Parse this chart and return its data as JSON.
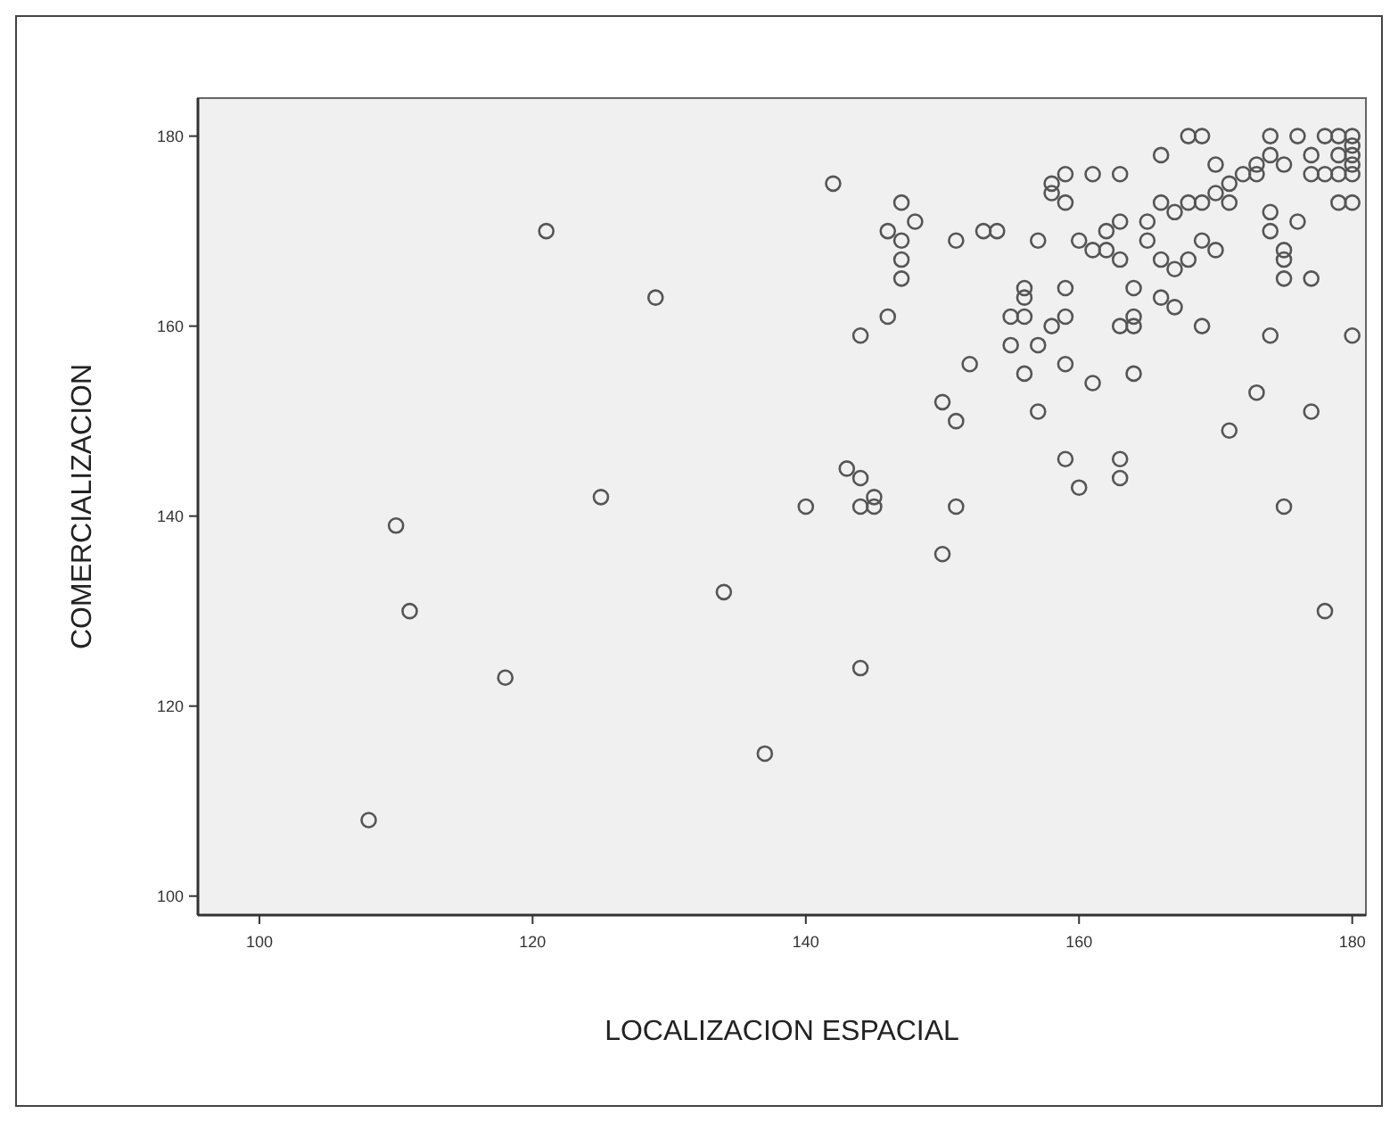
{
  "chart_data": {
    "type": "scatter",
    "xlabel": "LOCALIZACION ESPACIAL",
    "ylabel": "COMERCIALIZACION",
    "xlim": [
      95.5,
      181
    ],
    "ylim": [
      98,
      184
    ],
    "xticks": [
      100,
      120,
      140,
      160,
      180
    ],
    "yticks": [
      100,
      120,
      140,
      160,
      180
    ],
    "grid": false,
    "marker": "circle",
    "series": [
      {
        "color": "#555555",
        "x": [
          108,
          110,
          111,
          118,
          121,
          125,
          129,
          134,
          137,
          140,
          142,
          143,
          144,
          144,
          145,
          145,
          144,
          144,
          146,
          146,
          147,
          147,
          147,
          147,
          148,
          150,
          150,
          151,
          151,
          151,
          152,
          153,
          154,
          155,
          155,
          156,
          156,
          156,
          156,
          157,
          157,
          157,
          158,
          158,
          158,
          159,
          159,
          159,
          159,
          159,
          159,
          160,
          160,
          161,
          161,
          161,
          162,
          162,
          163,
          163,
          163,
          163,
          163,
          163,
          164,
          164,
          164,
          164,
          165,
          165,
          166,
          166,
          166,
          166,
          167,
          167,
          167,
          168,
          168,
          168,
          169,
          169,
          169,
          169,
          170,
          170,
          170,
          171,
          171,
          171,
          172,
          173,
          173,
          173,
          174,
          174,
          174,
          174,
          174,
          175,
          175,
          175,
          175,
          175,
          176,
          176,
          177,
          177,
          177,
          177,
          178,
          178,
          179,
          179,
          179,
          179,
          180,
          180,
          180,
          180,
          180,
          180,
          180,
          178
        ],
        "values": [
          108,
          139,
          130,
          123,
          170,
          142,
          163,
          132,
          115,
          141,
          175,
          145,
          144,
          141,
          142,
          141,
          124,
          159,
          161,
          170,
          173,
          169,
          167,
          165,
          171,
          152,
          136,
          150,
          141,
          169,
          156,
          170,
          170,
          161,
          158,
          164,
          163,
          161,
          155,
          169,
          151,
          158,
          175,
          174,
          160,
          176,
          173,
          164,
          161,
          156,
          146,
          169,
          143,
          176,
          168,
          154,
          170,
          168,
          176,
          171,
          167,
          160,
          146,
          144,
          164,
          161,
          160,
          155,
          171,
          169,
          178,
          173,
          167,
          163,
          172,
          166,
          162,
          180,
          173,
          167,
          180,
          173,
          169,
          160,
          177,
          174,
          168,
          175,
          173,
          149,
          176,
          177,
          176,
          153,
          180,
          178,
          172,
          170,
          159,
          177,
          168,
          167,
          165,
          141,
          171,
          180,
          178,
          176,
          165,
          151,
          180,
          130,
          180,
          178,
          176,
          173,
          180,
          179,
          178,
          177,
          176,
          173,
          159,
          176
        ]
      }
    ]
  }
}
